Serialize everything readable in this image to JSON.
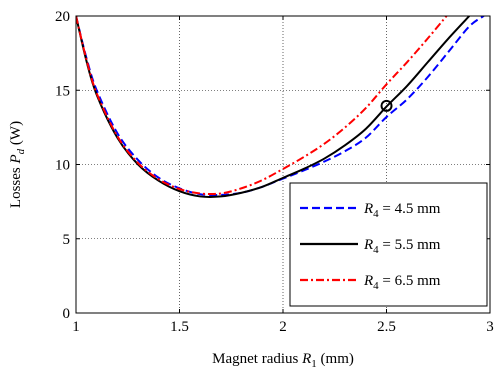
{
  "chart_data": {
    "type": "line",
    "xlabel": {
      "prefix": "Magnet radius ",
      "var": "R",
      "sub": "1",
      "suffix": " (mm)"
    },
    "ylabel": {
      "prefix": "Losses ",
      "var": "P",
      "sub": "d",
      "suffix": " (W)"
    },
    "xlim": [
      1,
      3
    ],
    "ylim": [
      0,
      20
    ],
    "xticks": [
      1,
      1.5,
      2,
      2.5,
      3
    ],
    "xtick_labels": [
      "1",
      "1.5",
      "2",
      "2.5",
      "3"
    ],
    "yticks": [
      0,
      5,
      10,
      15,
      20
    ],
    "ytick_labels": [
      "0",
      "5",
      "10",
      "15",
      "20"
    ],
    "grid": true,
    "legend_position": "bottom-right",
    "series": [
      {
        "name": "R4 = 4.5 mm",
        "label": {
          "var": "R",
          "sub": "4",
          "rest": " = 4.5 mm"
        },
        "color": "#0000ff",
        "style": "dashed",
        "x": [
          1.0,
          1.05,
          1.1,
          1.2,
          1.3,
          1.4,
          1.5,
          1.6,
          1.7,
          1.8,
          1.9,
          2.0,
          2.1,
          2.2,
          2.3,
          2.4,
          2.5,
          2.6,
          2.7,
          2.8,
          2.9,
          2.97
        ],
        "y": [
          20.0,
          17.2,
          15.0,
          12.1,
          10.3,
          9.1,
          8.4,
          8.0,
          7.95,
          8.1,
          8.5,
          9.05,
          9.6,
          10.2,
          10.9,
          11.8,
          13.2,
          14.4,
          15.9,
          17.6,
          19.3,
          20.0
        ]
      },
      {
        "name": "R4 = 5.5 mm",
        "label": {
          "var": "R",
          "sub": "4",
          "rest": " = 5.5 mm"
        },
        "color": "#000000",
        "style": "solid",
        "x": [
          1.0,
          1.05,
          1.1,
          1.2,
          1.3,
          1.4,
          1.5,
          1.6,
          1.7,
          1.8,
          1.9,
          2.0,
          2.1,
          2.2,
          2.3,
          2.4,
          2.5,
          2.6,
          2.7,
          2.8,
          2.9
        ],
        "y": [
          20.0,
          17.0,
          14.7,
          11.8,
          10.0,
          8.9,
          8.2,
          7.85,
          7.85,
          8.1,
          8.5,
          9.1,
          9.7,
          10.4,
          11.3,
          12.4,
          13.9,
          15.3,
          16.9,
          18.5,
          20.0
        ]
      },
      {
        "name": "R4 = 6.5 mm",
        "label": {
          "var": "R",
          "sub": "4",
          "rest": " = 6.5 mm"
        },
        "color": "#ff0000",
        "style": "dashdot",
        "x": [
          1.0,
          1.05,
          1.1,
          1.2,
          1.3,
          1.4,
          1.5,
          1.6,
          1.7,
          1.8,
          1.9,
          2.0,
          2.1,
          2.2,
          2.3,
          2.4,
          2.5,
          2.6,
          2.7,
          2.79
        ],
        "y": [
          20.0,
          17.1,
          14.8,
          11.9,
          10.1,
          9.0,
          8.35,
          8.05,
          8.05,
          8.4,
          8.95,
          9.7,
          10.5,
          11.4,
          12.5,
          13.8,
          15.4,
          16.9,
          18.5,
          20.0
        ]
      }
    ],
    "annotations": [
      {
        "type": "circle-marker",
        "x": 2.5,
        "y": 13.95
      }
    ]
  }
}
